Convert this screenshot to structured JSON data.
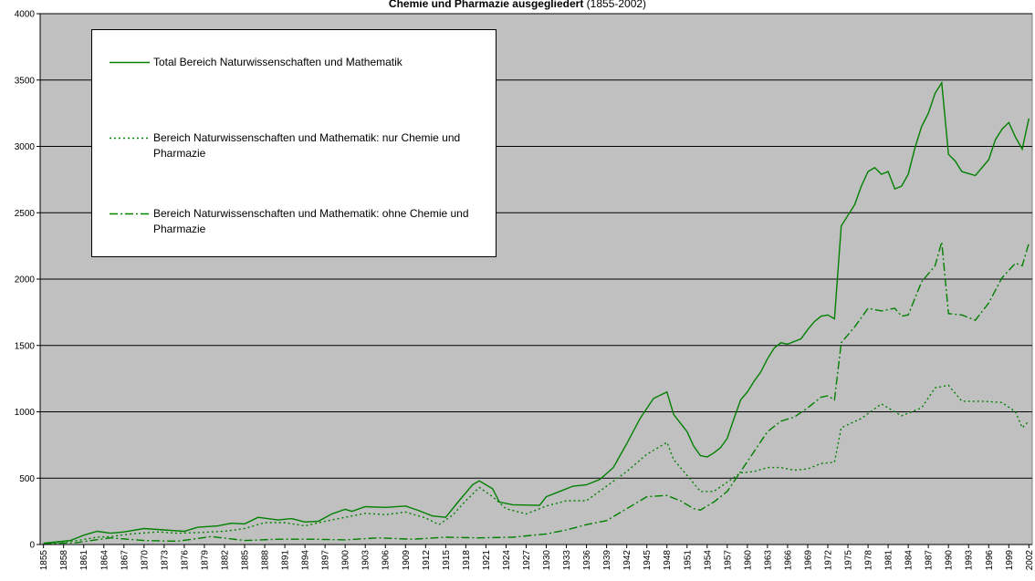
{
  "chart_data": {
    "type": "line",
    "title_bold": "Chemie und Pharmazie ausgegliedert",
    "title_suffix": "(1855-2002)",
    "xlim": [
      1854.5,
      2002.5
    ],
    "ylim": [
      0,
      4000
    ],
    "yticks": [
      0,
      500,
      1000,
      1500,
      2000,
      2500,
      3000,
      3500,
      4000
    ],
    "xticks": [
      1855,
      1858,
      1861,
      1864,
      1867,
      1870,
      1873,
      1876,
      1879,
      1882,
      1885,
      1888,
      1891,
      1894,
      1897,
      1900,
      1903,
      1906,
      1909,
      1912,
      1915,
      1918,
      1921,
      1924,
      1927,
      1930,
      1933,
      1936,
      1939,
      1942,
      1945,
      1948,
      1951,
      1954,
      1957,
      1960,
      1963,
      1966,
      1969,
      1972,
      1975,
      1978,
      1981,
      1984,
      1987,
      1990,
      1993,
      1996,
      1999,
      2002
    ],
    "grid": true,
    "background": "#c0c0c0",
    "legend": "upper left",
    "series": [
      {
        "name": "Total Bereich Naturwissenschaften und Mathematik",
        "color": "#008000",
        "dash": "solid",
        "x": [
          1855,
          1857,
          1859,
          1861,
          1863,
          1865,
          1867,
          1870,
          1873,
          1876,
          1878,
          1881,
          1883,
          1885,
          1887,
          1890,
          1892,
          1894,
          1896,
          1898,
          1900,
          1901,
          1903,
          1906,
          1909,
          1911,
          1913,
          1915,
          1917,
          1919,
          1920,
          1922,
          1923,
          1925,
          1929,
          1930,
          1932,
          1934,
          1936,
          1938,
          1940,
          1942,
          1944,
          1946,
          1948,
          1949,
          1951,
          1952,
          1953,
          1954,
          1955,
          1956,
          1957,
          1958,
          1959,
          1960,
          1961,
          1962,
          1963,
          1964,
          1965,
          1966,
          1968,
          1969,
          1970,
          1971,
          1972,
          1973,
          1974,
          1976,
          1977,
          1978,
          1979,
          1980,
          1981,
          1982,
          1983,
          1984,
          1985,
          1986,
          1987,
          1988,
          1989,
          1990,
          1991,
          1992,
          1994,
          1996,
          1997,
          1998,
          1999,
          2000,
          2001,
          2002
        ],
        "values": [
          10,
          20,
          30,
          70,
          100,
          85,
          95,
          120,
          110,
          100,
          130,
          140,
          160,
          155,
          205,
          185,
          195,
          170,
          175,
          230,
          265,
          250,
          285,
          280,
          290,
          255,
          215,
          205,
          330,
          450,
          480,
          420,
          320,
          300,
          295,
          360,
          400,
          440,
          450,
          490,
          580,
          760,
          950,
          1100,
          1150,
          980,
          850,
          740,
          670,
          660,
          690,
          730,
          800,
          950,
          1090,
          1150,
          1230,
          1300,
          1400,
          1480,
          1520,
          1510,
          1550,
          1620,
          1680,
          1720,
          1730,
          1700,
          2400,
          2560,
          2700,
          2810,
          2840,
          2790,
          2810,
          2680,
          2700,
          2790,
          2990,
          3150,
          3250,
          3400,
          3480,
          2940,
          2890,
          2810,
          2780,
          2900,
          3050,
          3130,
          3180,
          3070,
          2980,
          3210
        ]
      },
      {
        "name": "Bereich Naturwissenschaften und Mathematik: nur Chemie und Pharmazie",
        "color": "#008000",
        "dash": "dotted",
        "x": [
          1855,
          1860,
          1863,
          1865,
          1868,
          1872,
          1875,
          1878,
          1882,
          1885,
          1888,
          1891,
          1894,
          1897,
          1900,
          1903,
          1906,
          1909,
          1912,
          1914,
          1916,
          1918,
          1920,
          1922,
          1924,
          1927,
          1930,
          1933,
          1936,
          1939,
          1942,
          1945,
          1948,
          1949,
          1951,
          1953,
          1955,
          1957,
          1959,
          1961,
          1963,
          1965,
          1967,
          1969,
          1971,
          1973,
          1974,
          1977,
          1980,
          1983,
          1986,
          1988,
          1990,
          1992,
          1995,
          1998,
          2000,
          2001,
          2002
        ],
        "values": [
          5,
          30,
          55,
          60,
          80,
          95,
          85,
          90,
          100,
          120,
          165,
          165,
          140,
          175,
          205,
          235,
          225,
          245,
          200,
          150,
          220,
          330,
          430,
          360,
          270,
          230,
          290,
          330,
          330,
          440,
          550,
          680,
          770,
          640,
          520,
          400,
          400,
          470,
          540,
          550,
          580,
          580,
          560,
          570,
          610,
          620,
          880,
          950,
          1060,
          970,
          1030,
          1180,
          1200,
          1080,
          1080,
          1070,
          1000,
          880,
          930
        ]
      },
      {
        "name": "Bereich Naturwissenschaften und Mathematik: ohne Chemie und Pharmazie",
        "color": "#008000",
        "dash": "dashdot",
        "x": [
          1855,
          1860,
          1865,
          1870,
          1875,
          1880,
          1885,
          1890,
          1895,
          1900,
          1905,
          1910,
          1915,
          1920,
          1925,
          1930,
          1933,
          1936,
          1939,
          1942,
          1945,
          1948,
          1950,
          1952,
          1953,
          1955,
          1957,
          1959,
          1961,
          1963,
          1965,
          1967,
          1969,
          1971,
          1972,
          1973,
          1974,
          1976,
          1978,
          1980,
          1982,
          1983,
          1984,
          1986,
          1988,
          1989,
          1990,
          1992,
          1994,
          1996,
          1998,
          2000,
          2001,
          2002
        ],
        "values": [
          5,
          15,
          50,
          30,
          25,
          60,
          30,
          40,
          40,
          35,
          50,
          40,
          55,
          50,
          55,
          80,
          110,
          150,
          180,
          270,
          360,
          370,
          330,
          270,
          260,
          320,
          400,
          550,
          700,
          850,
          930,
          960,
          1030,
          1110,
          1120,
          1090,
          1520,
          1640,
          1780,
          1760,
          1780,
          1720,
          1730,
          1980,
          2100,
          2280,
          1740,
          1730,
          1690,
          1820,
          2010,
          2120,
          2100,
          2270
        ]
      }
    ]
  }
}
